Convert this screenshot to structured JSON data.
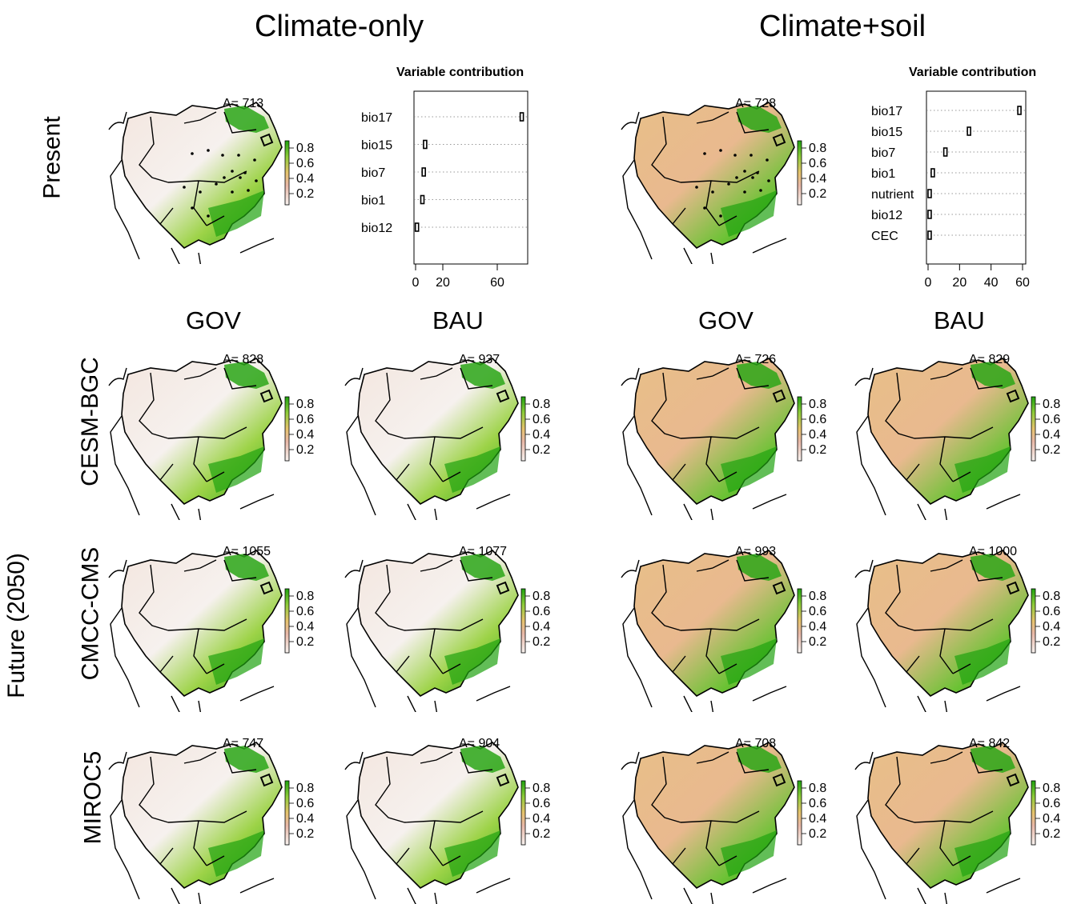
{
  "sections": {
    "left": "Climate-only",
    "right": "Climate+soil"
  },
  "rows": {
    "present": "Present",
    "future": "Future (2050)",
    "models": [
      "CESM-BGC",
      "CMCC-CMS",
      "MIROC5"
    ]
  },
  "scenarios": [
    "GOV",
    "BAU"
  ],
  "legend_ticks": [
    "0.8",
    "0.6",
    "0.4",
    "0.2"
  ],
  "present_maps": {
    "left": {
      "area": "A= 713"
    },
    "right": {
      "area": "A= 728"
    }
  },
  "future_maps": [
    {
      "model": "CESM-BGC",
      "cells": [
        {
          "area": "A= 828"
        },
        {
          "area": "A= 937"
        },
        {
          "area": "A= 726"
        },
        {
          "area": "A= 829"
        }
      ]
    },
    {
      "model": "CMCC-CMS",
      "cells": [
        {
          "area": "A= 1055"
        },
        {
          "area": "A= 1077"
        },
        {
          "area": "A= 993"
        },
        {
          "area": "A= 1000"
        }
      ]
    },
    {
      "model": "MIROC5",
      "cells": [
        {
          "area": "A= 747"
        },
        {
          "area": "A= 904"
        },
        {
          "area": "A= 708"
        },
        {
          "area": "A= 842"
        }
      ]
    }
  ],
  "colors": {
    "high": "#1fa30f",
    "mid": "#e9c36f",
    "low": "#f6f1ee",
    "border": "#000000"
  },
  "chart_data": [
    {
      "type": "dotplot",
      "title": "Variable contribution",
      "categories": [
        "bio17",
        "bio15",
        "bio7",
        "bio1",
        "bio12"
      ],
      "values": [
        78,
        7,
        6,
        5,
        1
      ],
      "xticks": [
        "0",
        "20",
        "60"
      ],
      "xlim": [
        0,
        80
      ]
    },
    {
      "type": "dotplot",
      "title": "Variable contribution",
      "categories": [
        "bio17",
        "bio15",
        "bio7",
        "bio1",
        "nutrient",
        "bio12",
        "CEC"
      ],
      "values": [
        58,
        26,
        11,
        3,
        1,
        1,
        1
      ],
      "xticks": [
        "0",
        "20",
        "40",
        "60"
      ],
      "xlim": [
        0,
        60
      ]
    }
  ]
}
